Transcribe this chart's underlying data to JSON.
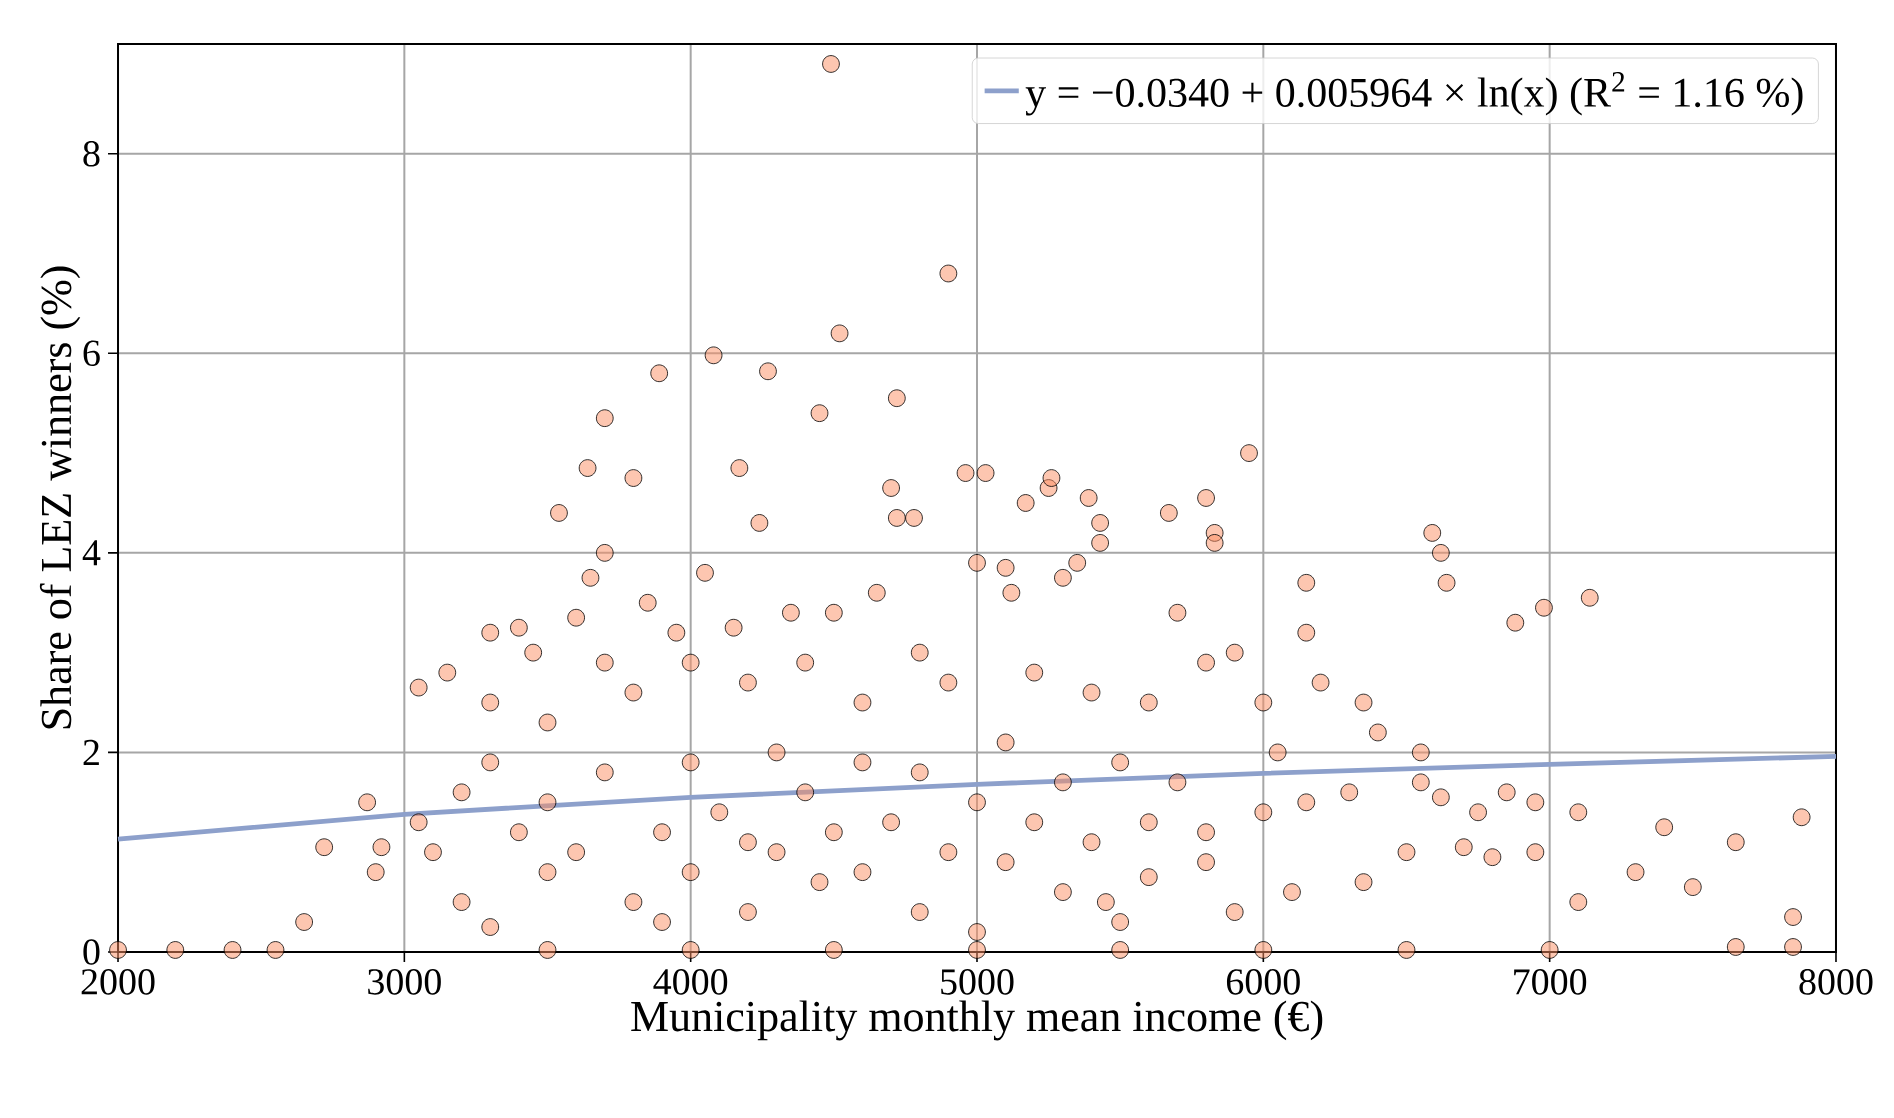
{
  "chart_data": {
    "type": "scatter",
    "xlabel": "Municipality monthly mean income (€)",
    "ylabel": "Share of LEZ winners (%)",
    "xlim": [
      2000,
      8000
    ],
    "ylim": [
      0,
      9.1
    ],
    "xticks": [
      2000,
      3000,
      4000,
      5000,
      6000,
      7000,
      8000
    ],
    "yticks": [
      0,
      2,
      4,
      6,
      8
    ],
    "grid": true,
    "legend": "top right",
    "series": [
      {
        "marker": "circle",
        "color": "#fc8d62",
        "x": [
          4490,
          4900,
          4520,
          4080,
          3890,
          4270,
          3700,
          4720,
          4450,
          3640,
          3540,
          3800,
          4170,
          4240,
          4700,
          4720,
          4780,
          5950,
          4960,
          5030,
          5250,
          5260,
          5170,
          5390,
          5430,
          5430,
          5800,
          5830,
          5830,
          6590,
          6620,
          6640,
          6880,
          6980,
          7140,
          5670,
          3700,
          3650,
          4050,
          5000,
          5100,
          5350,
          5120,
          5300,
          3300,
          3400,
          3450,
          3150,
          3050,
          3300,
          3600,
          3850,
          3950,
          4150,
          4350,
          4500,
          4650,
          3500,
          3700,
          3800,
          4000,
          4200,
          4400,
          4600,
          4800,
          4900,
          5200,
          5400,
          5600,
          5800,
          6000,
          6200,
          6350,
          6550,
          6400,
          5700,
          5900,
          6150,
          6150,
          6050,
          6150,
          6300,
          6550,
          6620,
          6850,
          6750,
          6950,
          7100,
          6700,
          6800,
          6950,
          7300,
          7400,
          7650,
          7880,
          7100,
          7500,
          7850,
          7850,
          7650,
          6500,
          6350,
          5800,
          6100,
          5600,
          5450,
          2000,
          2200,
          2400,
          2550,
          2650,
          2720,
          2900,
          2920,
          2870,
          3050,
          3100,
          3200,
          3300,
          3200,
          3300,
          3400,
          3500,
          3500,
          3600,
          3700,
          3800,
          3900,
          3900,
          4000,
          4000,
          4100,
          4200,
          4200,
          4300,
          4300,
          4400,
          4450,
          4500,
          4600,
          4600,
          4700,
          4800,
          4800,
          4900,
          5000,
          5000,
          5100,
          5100,
          5200,
          5300,
          5300,
          5400,
          5500,
          5500,
          5600,
          5700,
          5800,
          5900,
          6000,
          3500,
          4000,
          4500,
          5000,
          5500,
          6000,
          6500,
          7000
        ],
        "values": [
          8.9,
          6.8,
          6.2,
          5.98,
          5.8,
          5.82,
          5.35,
          5.55,
          5.4,
          4.85,
          4.4,
          4.75,
          4.85,
          4.3,
          4.65,
          4.35,
          4.35,
          5.0,
          4.8,
          4.8,
          4.65,
          4.75,
          4.5,
          4.55,
          4.3,
          4.1,
          4.55,
          4.2,
          4.1,
          4.2,
          4.0,
          3.7,
          3.3,
          3.45,
          3.55,
          4.4,
          4.0,
          3.75,
          3.8,
          3.9,
          3.85,
          3.9,
          3.6,
          3.75,
          3.2,
          3.25,
          3.0,
          2.8,
          2.65,
          2.5,
          3.35,
          3.5,
          3.2,
          3.25,
          3.4,
          3.4,
          3.6,
          2.3,
          2.9,
          2.6,
          2.9,
          2.7,
          2.9,
          2.5,
          3.0,
          2.7,
          2.8,
          2.6,
          2.5,
          2.9,
          2.5,
          2.7,
          2.5,
          2.0,
          2.2,
          3.4,
          3.0,
          3.2,
          3.7,
          2.0,
          1.5,
          1.6,
          1.7,
          1.55,
          1.6,
          1.4,
          1.5,
          1.4,
          1.05,
          0.95,
          1.0,
          0.8,
          1.25,
          1.1,
          1.35,
          0.5,
          0.65,
          0.35,
          0.05,
          0.05,
          1.0,
          0.7,
          0.9,
          0.6,
          0.75,
          0.5,
          0.02,
          0.02,
          0.02,
          0.02,
          0.3,
          1.05,
          0.8,
          1.05,
          1.5,
          1.3,
          1.0,
          1.6,
          1.9,
          0.5,
          0.25,
          1.2,
          1.5,
          0.8,
          1.0,
          1.8,
          0.5,
          1.2,
          0.3,
          1.9,
          0.8,
          1.4,
          1.1,
          0.4,
          2.0,
          1.0,
          1.6,
          0.7,
          1.2,
          1.9,
          0.8,
          1.3,
          0.4,
          1.8,
          1.0,
          1.5,
          0.2,
          2.1,
          0.9,
          1.3,
          1.7,
          0.6,
          1.1,
          1.9,
          0.3,
          1.3,
          1.7,
          1.2,
          0.4,
          1.4,
          0.02,
          0.02,
          0.02,
          0.02,
          0.02,
          0.02,
          0.02,
          0.02
        ]
      },
      {
        "type": "line",
        "marker": "none",
        "name": "y = −0.0340 + 0.005964 × ln(x) (R$^{2}$ = 1.16 %)",
        "color": "#8da0cb",
        "x": [
          2000,
          3000,
          4000,
          5000,
          6000,
          7000,
          8000
        ],
        "values": [
          1.13,
          1.38,
          1.55,
          1.68,
          1.79,
          1.88,
          1.96
        ]
      }
    ]
  }
}
